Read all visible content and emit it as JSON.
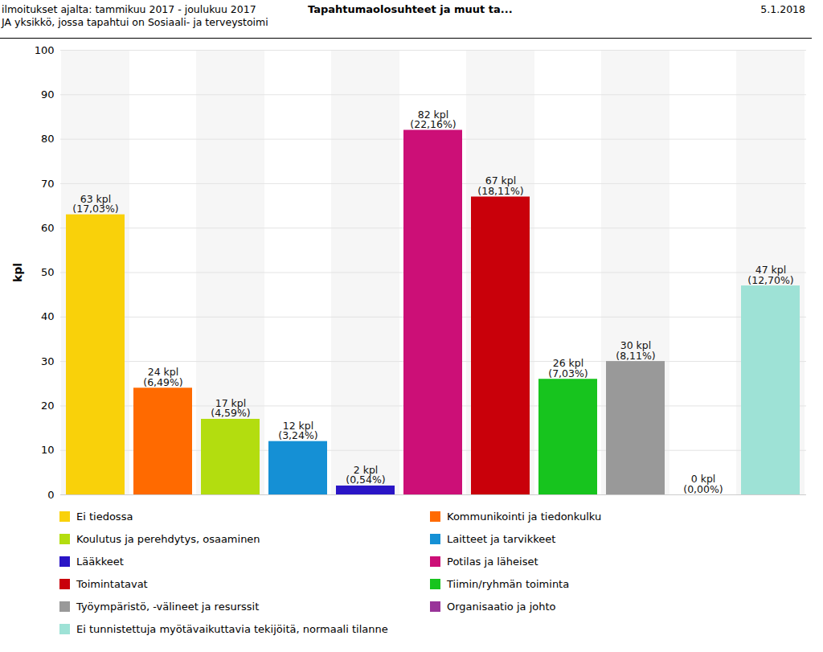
{
  "chart_data": {
    "type": "bar",
    "title": "Tapahtumaolosuhteet ja muut ta...",
    "subtitle": [
      "ilmoitukset ajalta: tammikuu 2017 - joulukuu 2017",
      "JA yksikkö, jossa tapahtui on Sosiaali- ja terveystoimi"
    ],
    "annotations": [
      "5.1.2018"
    ],
    "y_label": "kpl",
    "categories": [
      "Ei tiedossa",
      "Kommunikointi ja tiedonkulku",
      "Koulutus ja perehdytys, osaaminen",
      "Laitteet ja tarvikkeet",
      "Lääkkeet",
      "Potilas ja läheiset",
      "Toimintatavat",
      "Tiimin/ryhmän toiminta",
      "Työympäristö, -välineet ja resurssit",
      "Organisaatio ja johto",
      "Ei tunnistettuja myötävaikuttavia tekijöitä, normaali tilanne"
    ],
    "values": [
      63,
      24,
      17,
      12,
      2,
      82,
      67,
      26,
      30,
      0,
      47
    ],
    "value_labels": [
      "63 kpl\n(17,03%)",
      "24 kpl\n(6,49%)",
      "17 kpl\n(4,59%)",
      "12 kpl\n(3,24%)",
      "2 kpl\n(0,54%)",
      "82 kpl\n(22,16%)",
      "67 kpl\n(18,11%)",
      "26 kpl\n(7,03%)",
      "30 kpl\n(8,11%)",
      "0 kpl\n(0,00%)",
      "47 kpl\n(12,70%)"
    ],
    "colors": [
      "#f9d10a",
      "#ff6a00",
      "#b3dd0f",
      "#1590d5",
      "#2a15c6",
      "#cc0f77",
      "#c9000a",
      "#17c41e",
      "#999999",
      "#993399",
      "#9ee2d6"
    ],
    "ylim": [
      0,
      100
    ],
    "yticks": [
      0,
      10,
      20,
      30,
      40,
      50,
      60,
      70,
      80,
      90,
      100
    ],
    "grid": true,
    "data_labels": true,
    "tick_labels": "y",
    "legend": "bottom"
  }
}
